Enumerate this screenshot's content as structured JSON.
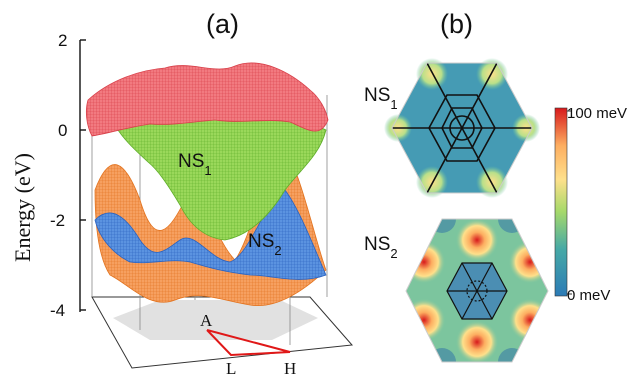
{
  "panels": [
    {
      "label": "(a)"
    },
    {
      "label": "(b)"
    }
  ],
  "panel_a": {
    "ylabel": "Energy (eV)",
    "yticks": [
      "2",
      "0",
      "-2",
      "-4"
    ],
    "bands": [
      {
        "label": "NS",
        "sub": "1",
        "color": "#7ccd3c"
      },
      {
        "label": "NS",
        "sub": "2",
        "color": "#3a78d8"
      }
    ],
    "band_colors": {
      "top": "#ee5b62",
      "orange": "#f08a3c",
      "green": "#7ccd3c",
      "blue": "#3a78d8"
    },
    "bz_points": {
      "A": "A",
      "L": "L",
      "H": "H"
    }
  },
  "panel_b": {
    "maps": [
      {
        "label": "NS",
        "sub": "1"
      },
      {
        "label": "NS",
        "sub": "2"
      }
    ],
    "colorbar": {
      "max_label": "100 meV",
      "min_label": "0 meV",
      "colors": [
        "#2c7bb6",
        "#46a9a6",
        "#a6d96a",
        "#fee08b",
        "#fdae61",
        "#d7191c"
      ]
    }
  }
}
